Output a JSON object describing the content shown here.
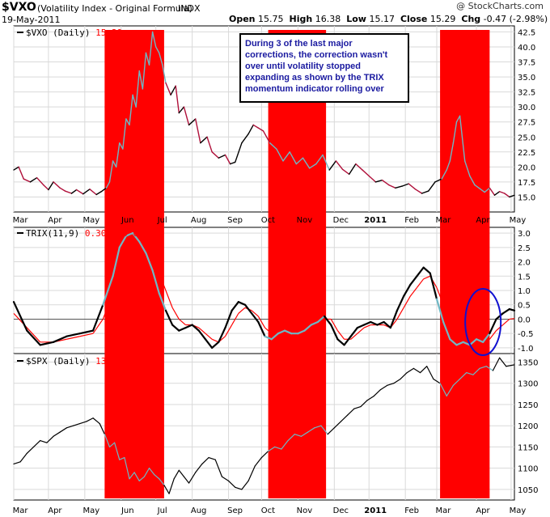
{
  "header": {
    "symbol": "$VXO",
    "description": "(Volatility Index - Original Formula)",
    "exchange": "INDX",
    "date": "19-May-2011",
    "credit": "@ StockCharts.com",
    "open_label": "Open",
    "open": "15.75",
    "high_label": "High",
    "high": "16.38",
    "low_label": "Low",
    "low": "15.17",
    "close_label": "Close",
    "close": "15.29",
    "chg_label": "Chg",
    "chg": "-0.47 (-2.98%)"
  },
  "annotation": "During 3 of the last major corrections, the correction wasn't over until volatility stopped expanding as shown by the TRIX momentum indicator rolling over",
  "colors": {
    "highlight": "#ff0000",
    "price_up": "#000000",
    "price_down": "#b0103a",
    "highlighted_line": "#6fb7c4",
    "trix": "#000000",
    "signal": "#ff0000",
    "circle": "#1010d0",
    "annotation_text": "#1a1aa0",
    "grid": "#d9d9d9"
  },
  "chart_data": [
    {
      "type": "line",
      "panel": "vxo",
      "legend_name": "$VXO (Daily)",
      "legend_value": "15.29",
      "y_ticks": [
        15.0,
        17.5,
        20.0,
        22.5,
        25.0,
        27.5,
        30.0,
        32.5,
        35.0,
        37.5,
        40.0,
        42.5
      ],
      "ylim": [
        12.5,
        43.5
      ],
      "x_ticks": [
        "Mar",
        "Apr",
        "May",
        "Jun",
        "Jul",
        "Aug",
        "Sep",
        "Oct",
        "Nov",
        "Dec",
        "2011",
        "Feb",
        "Mar",
        "Apr",
        "May"
      ],
      "grid": true,
      "x": [
        0,
        3,
        6,
        10,
        14,
        18,
        21,
        24,
        28,
        31,
        35,
        38,
        42,
        46,
        50,
        53,
        56,
        58,
        60,
        62,
        64,
        66,
        68,
        70,
        72,
        74,
        76,
        78,
        80,
        82,
        84,
        86,
        88,
        90,
        92,
        95,
        98,
        100,
        103,
        106,
        110,
        113,
        117,
        120,
        124,
        128,
        131,
        134,
        138,
        142,
        145,
        148,
        151,
        155,
        159,
        163,
        167,
        171,
        175,
        179,
        183,
        187,
        191,
        195,
        199,
        203,
        207,
        211,
        215,
        219,
        223,
        227,
        231,
        235,
        239,
        243,
        247,
        251,
        255,
        259,
        262,
        264,
        266,
        268,
        270,
        273,
        276,
        279,
        282,
        285,
        288,
        291,
        294,
        297,
        300,
        303
      ],
      "values": [
        19.5,
        20.0,
        18.0,
        17.5,
        18.2,
        17.0,
        16.2,
        17.5,
        16.5,
        16.0,
        15.6,
        16.2,
        15.5,
        16.3,
        15.4,
        15.9,
        16.5,
        17.5,
        21.0,
        20.0,
        24.0,
        23.0,
        28.0,
        27.0,
        32.0,
        30.0,
        36.0,
        33.0,
        39.0,
        37.0,
        42.5,
        40.0,
        39.0,
        37.0,
        34.0,
        32.0,
        33.5,
        29.0,
        30.0,
        27.0,
        28.0,
        24.0,
        25.0,
        22.5,
        21.5,
        22.0,
        20.5,
        20.8,
        24.0,
        25.5,
        27.0,
        26.5,
        26.0,
        24.0,
        23.0,
        21.0,
        22.5,
        20.5,
        21.5,
        19.8,
        20.5,
        22.0,
        19.5,
        21.0,
        19.6,
        18.8,
        20.5,
        19.5,
        18.5,
        17.5,
        17.8,
        17.0,
        16.5,
        16.8,
        17.2,
        16.3,
        15.6,
        16.0,
        17.5,
        18.0,
        19.5,
        21.0,
        24.0,
        27.5,
        28.5,
        21.0,
        18.5,
        17.0,
        16.4,
        15.8,
        16.5,
        15.3,
        15.9,
        15.6,
        15.0,
        15.29
      ]
    },
    {
      "type": "line",
      "panel": "trix",
      "legend_name": "TRIX(11,9)",
      "legend_values": "0.301, 0.022",
      "y_ticks": [
        -1.0,
        -0.5,
        0.0,
        0.5,
        1.0,
        1.5,
        2.0,
        2.5,
        3.0
      ],
      "ylim": [
        -1.2,
        3.2
      ],
      "grid": true,
      "series": [
        {
          "name": "TRIX",
          "x": [
            0,
            8,
            16,
            24,
            32,
            40,
            48,
            54,
            60,
            64,
            68,
            72,
            76,
            80,
            84,
            88,
            92,
            96,
            100,
            104,
            108,
            112,
            116,
            120,
            124,
            128,
            132,
            136,
            140,
            144,
            148,
            152,
            156,
            160,
            164,
            168,
            172,
            176,
            180,
            184,
            188,
            192,
            196,
            200,
            204,
            208,
            212,
            216,
            220,
            224,
            228,
            232,
            236,
            240,
            244,
            248,
            252,
            256,
            260,
            264,
            268,
            272,
            276,
            280,
            284,
            288,
            292,
            296,
            300,
            303
          ],
          "values": [
            0.6,
            -0.4,
            -0.9,
            -0.8,
            -0.6,
            -0.5,
            -0.4,
            0.5,
            1.5,
            2.5,
            2.9,
            3.0,
            2.7,
            2.3,
            1.7,
            0.9,
            0.3,
            -0.2,
            -0.4,
            -0.3,
            -0.2,
            -0.4,
            -0.7,
            -1.0,
            -0.8,
            -0.3,
            0.3,
            0.6,
            0.5,
            0.2,
            -0.1,
            -0.6,
            -0.7,
            -0.5,
            -0.4,
            -0.5,
            -0.5,
            -0.4,
            -0.2,
            -0.1,
            0.1,
            -0.2,
            -0.7,
            -0.9,
            -0.6,
            -0.3,
            -0.2,
            -0.1,
            -0.2,
            -0.1,
            -0.3,
            0.3,
            0.8,
            1.2,
            1.5,
            1.8,
            1.6,
            0.7,
            -0.1,
            -0.7,
            -0.9,
            -0.8,
            -0.9,
            -0.7,
            -0.8,
            -0.5,
            0.0,
            0.2,
            0.35,
            0.301
          ]
        },
        {
          "name": "Signal",
          "x": [
            0,
            8,
            16,
            24,
            32,
            40,
            48,
            54,
            60,
            64,
            68,
            72,
            76,
            80,
            84,
            88,
            92,
            96,
            100,
            104,
            108,
            112,
            116,
            120,
            124,
            128,
            132,
            136,
            140,
            144,
            148,
            152,
            156,
            160,
            164,
            168,
            172,
            176,
            180,
            184,
            188,
            192,
            196,
            200,
            204,
            208,
            212,
            216,
            220,
            224,
            228,
            232,
            236,
            240,
            244,
            248,
            252,
            256,
            260,
            264,
            268,
            272,
            276,
            280,
            284,
            288,
            292,
            296,
            300,
            303
          ],
          "values": [
            0.2,
            -0.3,
            -0.8,
            -0.8,
            -0.7,
            -0.6,
            -0.5,
            0.0,
            0.9,
            1.7,
            2.4,
            2.8,
            2.8,
            2.6,
            2.2,
            1.6,
            1.0,
            0.4,
            0.0,
            -0.2,
            -0.2,
            -0.3,
            -0.5,
            -0.7,
            -0.8,
            -0.6,
            -0.2,
            0.2,
            0.4,
            0.3,
            0.1,
            -0.3,
            -0.5,
            -0.5,
            -0.5,
            -0.5,
            -0.5,
            -0.4,
            -0.3,
            -0.2,
            0.0,
            0.0,
            -0.4,
            -0.7,
            -0.7,
            -0.5,
            -0.3,
            -0.2,
            -0.2,
            -0.2,
            -0.3,
            0.0,
            0.4,
            0.8,
            1.1,
            1.4,
            1.5,
            1.1,
            0.5,
            -0.1,
            -0.5,
            -0.7,
            -0.8,
            -0.8,
            -0.8,
            -0.7,
            -0.4,
            -0.2,
            0.0,
            0.022
          ]
        }
      ]
    },
    {
      "type": "line",
      "panel": "spx",
      "legend_name": "$SPX (Daily)",
      "legend_value": "1343.60",
      "y_ticks": [
        1050,
        1100,
        1150,
        1200,
        1250,
        1300,
        1350
      ],
      "ylim": [
        1025,
        1370
      ],
      "x_ticks": [
        "Mar",
        "Apr",
        "May",
        "Jun",
        "Jul",
        "Aug",
        "Sep",
        "Oct",
        "Nov",
        "Dec",
        "2011",
        "Feb",
        "Mar",
        "Apr",
        "May"
      ],
      "grid": true,
      "x": [
        0,
        4,
        8,
        12,
        16,
        20,
        24,
        28,
        32,
        36,
        40,
        44,
        48,
        52,
        55,
        58,
        61,
        64,
        67,
        70,
        73,
        76,
        79,
        82,
        85,
        88,
        91,
        94,
        97,
        100,
        103,
        106,
        110,
        114,
        118,
        122,
        126,
        130,
        134,
        138,
        142,
        146,
        150,
        154,
        158,
        162,
        166,
        170,
        174,
        178,
        182,
        186,
        190,
        194,
        198,
        202,
        206,
        210,
        214,
        218,
        222,
        226,
        230,
        234,
        238,
        242,
        246,
        250,
        254,
        258,
        262,
        266,
        270,
        274,
        278,
        282,
        286,
        290,
        294,
        298,
        303
      ],
      "values": [
        1110,
        1115,
        1135,
        1150,
        1165,
        1160,
        1175,
        1185,
        1195,
        1200,
        1205,
        1210,
        1218,
        1205,
        1180,
        1150,
        1160,
        1120,
        1125,
        1075,
        1090,
        1070,
        1080,
        1100,
        1085,
        1075,
        1060,
        1040,
        1075,
        1095,
        1080,
        1065,
        1090,
        1110,
        1125,
        1120,
        1080,
        1070,
        1055,
        1050,
        1070,
        1105,
        1125,
        1140,
        1150,
        1145,
        1165,
        1180,
        1175,
        1185,
        1195,
        1200,
        1180,
        1195,
        1210,
        1225,
        1240,
        1245,
        1260,
        1270,
        1285,
        1295,
        1300,
        1310,
        1325,
        1335,
        1325,
        1340,
        1310,
        1300,
        1270,
        1295,
        1310,
        1325,
        1320,
        1335,
        1340,
        1330,
        1360,
        1340,
        1343.6
      ]
    }
  ],
  "highlights": [
    {
      "x_start": 55,
      "x_end": 91
    },
    {
      "x_start": 154,
      "x_end": 189
    },
    {
      "x_start": 258,
      "x_end": 288
    }
  ]
}
